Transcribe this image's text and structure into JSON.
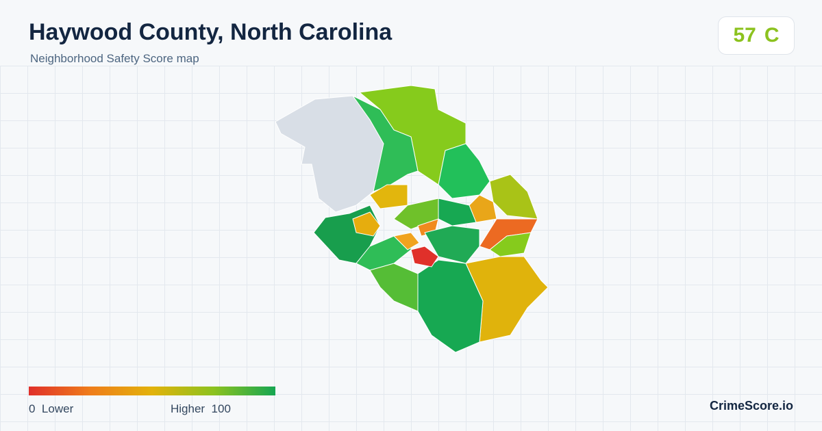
{
  "header": {
    "title": "Haywood County, North Carolina",
    "subtitle": "Neighborhood Safety Score map"
  },
  "score": {
    "value": 57,
    "grade": "C"
  },
  "legend": {
    "min": 0,
    "min_label": "Lower",
    "max_label": "Higher",
    "max": 100
  },
  "brand": "CrimeScore.io"
}
